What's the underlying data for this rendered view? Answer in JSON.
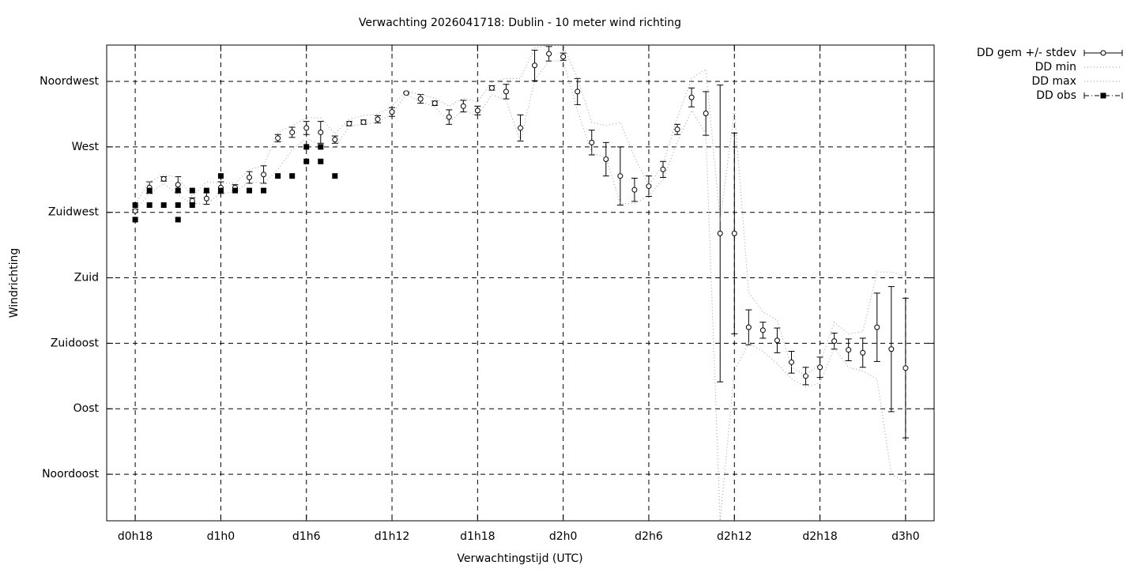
{
  "chart_data": {
    "type": "errorbar",
    "title": "Verwachting 2026041718: Dublin - 10 meter wind richting",
    "x_label": "Verwachtingstijd (UTC)",
    "y_label": "Windrichting",
    "xlim": [
      16,
      74
    ],
    "ylim": [
      13,
      340
    ],
    "grid": true,
    "legend": "right",
    "xticks": [
      {
        "value": 18,
        "label": "d0h18"
      },
      {
        "value": 24,
        "label": "d1h0"
      },
      {
        "value": 30,
        "label": "d1h6"
      },
      {
        "value": 36,
        "label": "d1h12"
      },
      {
        "value": 42,
        "label": "d1h18"
      },
      {
        "value": 48,
        "label": "d2h0"
      },
      {
        "value": 54,
        "label": "d2h6"
      },
      {
        "value": 60,
        "label": "d2h12"
      },
      {
        "value": 66,
        "label": "d2h18"
      },
      {
        "value": 72,
        "label": "d3h0"
      }
    ],
    "yticks": [
      {
        "value": 45,
        "label": "Noordoost"
      },
      {
        "value": 90,
        "label": "Oost"
      },
      {
        "value": 135,
        "label": "Zuidoost"
      },
      {
        "value": 180,
        "label": "Zuid"
      },
      {
        "value": 225,
        "label": "Zuidwest"
      },
      {
        "value": 270,
        "label": "West"
      },
      {
        "value": 315,
        "label": "Noordwest"
      }
    ],
    "x": [
      18,
      19,
      20,
      21,
      22,
      23,
      24,
      25,
      26,
      27,
      28,
      29,
      30,
      31,
      32,
      33,
      34,
      35,
      36,
      37,
      38,
      39,
      40,
      41,
      42,
      43,
      44,
      45,
      46,
      47,
      48,
      49,
      50,
      51,
      52,
      53,
      54,
      55,
      56,
      57,
      58,
      59,
      60,
      61,
      62,
      63,
      64,
      65,
      66,
      67,
      68,
      69,
      70,
      71,
      72
    ],
    "series": [
      {
        "name": "DD gem +/- stdev",
        "color": "#000000",
        "values": [
          226,
          242,
          248,
          244,
          233,
          234.5,
          242,
          242,
          249,
          251,
          276,
          280,
          283,
          280,
          275,
          286,
          287,
          289,
          294,
          307,
          303,
          300,
          290.5,
          298,
          295,
          310.5,
          308,
          283,
          326,
          334,
          332,
          308,
          273,
          261.5,
          250,
          240.5,
          243,
          254.5,
          282,
          304,
          293,
          210.5,
          210.5,
          146,
          144,
          137,
          122,
          112.5,
          118.5,
          136.5,
          130.5,
          128.5,
          146,
          131,
          118
        ],
        "errors": [
          1,
          4,
          1.5,
          5.5,
          2,
          4,
          4,
          2,
          4,
          6,
          2.5,
          3.5,
          4.5,
          7.5,
          2.5,
          1.5,
          1.5,
          2.5,
          3,
          0.5,
          3,
          1.5,
          5,
          4,
          3,
          1.5,
          5,
          9,
          10.5,
          5,
          2.5,
          9,
          8.5,
          11.5,
          20,
          8,
          7,
          5.5,
          3.5,
          6.5,
          15,
          102,
          69,
          12,
          5.5,
          8.5,
          7.5,
          6,
          7,
          5.5,
          7.5,
          10,
          23.5,
          43,
          48
        ]
      },
      {
        "name": "DD min",
        "color": "#aaaaaa",
        "values": [
          226,
          238,
          245,
          237,
          231,
          231,
          238,
          239,
          246,
          245,
          254.5,
          268,
          276,
          271,
          269,
          284.5,
          285.5,
          287,
          292.5,
          306,
          301,
          297.5,
          287,
          295.5,
          291,
          306,
          302,
          273.5,
          316,
          329,
          329,
          295,
          265.5,
          263,
          231,
          231,
          236.5,
          247.5,
          273.5,
          295,
          279,
          13,
          116,
          135,
          129.5,
          121,
          110.5,
          105,
          107.5,
          132,
          118.5,
          116,
          110.5,
          45,
          39.5
        ]
      },
      {
        "name": "DD max",
        "color": "#aaaaaa",
        "values": [
          231,
          246,
          251,
          249,
          236,
          246,
          245,
          245,
          254.5,
          257,
          280,
          284.5,
          290,
          290,
          279,
          289,
          291.5,
          292.5,
          298,
          308.5,
          306,
          303.5,
          298,
          303.5,
          301,
          314.5,
          317,
          317,
          338,
          340,
          340,
          317,
          287,
          284.5,
          287,
          263,
          243.5,
          258,
          290,
          317,
          323.5,
          219,
          295,
          170,
          156.5,
          151,
          118.5,
          113,
          121,
          149.5,
          141.5,
          143,
          184,
          184,
          181
        ]
      },
      {
        "name": "DD obs",
        "color": "#000000",
        "x": [
          18,
          18,
          19,
          19,
          20,
          21,
          21,
          21,
          22,
          22,
          23,
          24,
          24,
          25,
          26,
          27,
          28,
          29,
          30,
          30,
          31,
          31,
          32
        ],
        "values": [
          230,
          220,
          240,
          230,
          230,
          240,
          230,
          220,
          240,
          230,
          240,
          250,
          240,
          240,
          240,
          240,
          250,
          250,
          270,
          260,
          270,
          260,
          250
        ]
      }
    ]
  }
}
